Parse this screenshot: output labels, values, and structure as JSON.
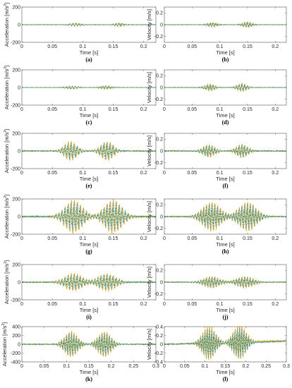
{
  "colors": {
    "solid": "#E8A317",
    "dashed": "#3E9FD6",
    "dashdot": "#2E8B57"
  },
  "chart_data": [
    {
      "id": "a",
      "type": "line",
      "panel_label": "(a)",
      "xlabel": "Time [s]",
      "ylabel": "Acceleration [m/s²]",
      "ylabel_main": "Acceleration [m/s",
      "ylabel_sup": "2",
      "ylabel_end": "]",
      "xlim": [
        0,
        0.22
      ],
      "ylim": [
        -200,
        200
      ],
      "xticks": [
        0,
        0.05,
        0.1,
        0.15,
        0.2
      ],
      "xtick_labels": [
        "0",
        "0.05",
        "0.1",
        "0.15",
        "0.2"
      ],
      "yticks": [
        -200,
        0,
        200
      ],
      "ytick_labels": [
        "-200",
        "0",
        "200"
      ],
      "bursts": [
        {
          "t": 0.088,
          "a": 18,
          "w": 0.012
        },
        {
          "t": 0.16,
          "a": 22,
          "w": 0.01
        }
      ],
      "noise": 6
    },
    {
      "id": "b",
      "type": "line",
      "panel_label": "(b)",
      "xlabel": "Time [s]",
      "ylabel": "Velocity [m/s]",
      "xlim": [
        0,
        0.22
      ],
      "ylim": [
        -0.3,
        0.3
      ],
      "xticks": [
        0,
        0.05,
        0.1,
        0.15,
        0.2
      ],
      "xtick_labels": [
        "0",
        "0.05",
        "0.1",
        "0.15",
        "0.2"
      ],
      "yticks": [
        -0.2,
        0,
        0.2
      ],
      "ytick_labels": [
        "-0.2",
        "0",
        "0.2"
      ],
      "bursts": [
        {
          "t": 0.087,
          "a": 0.04,
          "w": 0.012
        },
        {
          "t": 0.15,
          "a": 0.05,
          "w": 0.012
        }
      ],
      "noise": 0.008
    },
    {
      "id": "c",
      "type": "line",
      "panel_label": "(c)",
      "xlabel": "Time [s]",
      "ylabel": "Acceleration [m/s²]",
      "ylabel_main": "Acceleration [m/s",
      "ylabel_sup": "2",
      "ylabel_end": "]",
      "xlim": [
        0,
        0.22
      ],
      "ylim": [
        -200,
        200
      ],
      "xticks": [
        0,
        0.05,
        0.1,
        0.15,
        0.2
      ],
      "xtick_labels": [
        "0",
        "0.05",
        "0.1",
        "0.15",
        "0.2"
      ],
      "yticks": [
        -200,
        0,
        200
      ],
      "ytick_labels": [
        "-200",
        "0",
        "200"
      ],
      "bursts": [
        {
          "t": 0.082,
          "a": 18,
          "w": 0.014
        },
        {
          "t": 0.138,
          "a": 20,
          "w": 0.014
        }
      ],
      "noise": 4
    },
    {
      "id": "d",
      "type": "line",
      "panel_label": "(d)",
      "xlabel": "Time [s]",
      "ylabel": "Velocity [m/s]",
      "xlim": [
        0,
        0.22
      ],
      "ylim": [
        -0.3,
        0.3
      ],
      "xticks": [
        0,
        0.05,
        0.1,
        0.15,
        0.2
      ],
      "xtick_labels": [
        "0",
        "0.05",
        "0.1",
        "0.15",
        "0.2"
      ],
      "yticks": [
        -0.2,
        0,
        0.2
      ],
      "ytick_labels": [
        "-0.2",
        "0",
        "0.2"
      ],
      "bursts": [
        {
          "t": 0.082,
          "a": 0.06,
          "w": 0.012
        },
        {
          "t": 0.14,
          "a": 0.07,
          "w": 0.012
        }
      ],
      "noise": 0.008
    },
    {
      "id": "e",
      "type": "line",
      "panel_label": "(e)",
      "xlabel": "Time [s]",
      "ylabel": "Acceleration [m/s²]",
      "ylabel_main": "Acceleration [m/s",
      "ylabel_sup": "2",
      "ylabel_end": "]",
      "xlim": [
        0,
        0.22
      ],
      "ylim": [
        -200,
        200
      ],
      "xticks": [
        0,
        0.05,
        0.1,
        0.15,
        0.2
      ],
      "xtick_labels": [
        "0",
        "0.05",
        "0.1",
        "0.15",
        "0.2"
      ],
      "yticks": [
        -200,
        0,
        200
      ],
      "ytick_labels": [
        "-200",
        "0",
        "200"
      ],
      "bursts": [
        {
          "t": 0.08,
          "a": 110,
          "w": 0.014
        },
        {
          "t": 0.14,
          "a": 110,
          "w": 0.014
        }
      ],
      "noise": 14
    },
    {
      "id": "f",
      "type": "line",
      "panel_label": "(f)",
      "xlabel": "Time [s]",
      "ylabel": "Velocity [m/s]",
      "xlim": [
        0,
        0.22
      ],
      "ylim": [
        -0.3,
        0.3
      ],
      "xticks": [
        0,
        0.05,
        0.1,
        0.15,
        0.2
      ],
      "xtick_labels": [
        "0",
        "0.05",
        "0.1",
        "0.15",
        "0.2"
      ],
      "yticks": [
        -0.2,
        0,
        0.2
      ],
      "ytick_labels": [
        "-0.2",
        "0",
        "0.2"
      ],
      "bursts": [
        {
          "t": 0.08,
          "a": 0.11,
          "w": 0.014
        },
        {
          "t": 0.14,
          "a": 0.12,
          "w": 0.014
        }
      ],
      "noise": 0.02
    },
    {
      "id": "g",
      "type": "line",
      "panel_label": "(g)",
      "xlabel": "Time [s]",
      "ylabel": "Acceleration [m/s²]",
      "ylabel_main": "Acceleration [m/s",
      "ylabel_sup": "2",
      "ylabel_end": "]",
      "xlim": [
        0,
        0.22
      ],
      "ylim": [
        -200,
        200
      ],
      "xticks": [
        0,
        0.05,
        0.1,
        0.15,
        0.2
      ],
      "xtick_labels": [
        "0",
        "0.05",
        "0.1",
        "0.15",
        "0.2"
      ],
      "yticks": [
        -200,
        0,
        200
      ],
      "ytick_labels": [
        "-200",
        "0",
        "200"
      ],
      "bursts": [
        {
          "t": 0.085,
          "a": 190,
          "w": 0.02
        },
        {
          "t": 0.15,
          "a": 190,
          "w": 0.02
        }
      ],
      "noise": 18
    },
    {
      "id": "h",
      "type": "line",
      "panel_label": "(h)",
      "xlabel": "Time [s]",
      "ylabel": "Velocity [m/s]",
      "xlim": [
        0,
        0.22
      ],
      "ylim": [
        -0.3,
        0.3
      ],
      "xticks": [
        0,
        0.05,
        0.1,
        0.15,
        0.2
      ],
      "xtick_labels": [
        "0",
        "0.05",
        "0.1",
        "0.15",
        "0.2"
      ],
      "yticks": [
        -0.2,
        0,
        0.2
      ],
      "ytick_labels": [
        "-0.2",
        "0",
        "0.2"
      ],
      "bursts": [
        {
          "t": 0.085,
          "a": 0.25,
          "w": 0.022
        },
        {
          "t": 0.15,
          "a": 0.25,
          "w": 0.022
        }
      ],
      "noise": 0.02
    },
    {
      "id": "i",
      "type": "line",
      "panel_label": "(i)",
      "xlabel": "Time [s]",
      "ylabel": "Acceleration [m/s²]",
      "ylabel_main": "Acceleration [m/s",
      "ylabel_sup": "2",
      "ylabel_end": "]",
      "xlim": [
        0,
        0.22
      ],
      "ylim": [
        -200,
        200
      ],
      "xticks": [
        0,
        0.05,
        0.1,
        0.15,
        0.2
      ],
      "xtick_labels": [
        "0",
        "0.05",
        "0.1",
        "0.15",
        "0.2"
      ],
      "yticks": [
        -200,
        0,
        200
      ],
      "ytick_labels": [
        "-200",
        "0",
        "200"
      ],
      "bursts": [
        {
          "t": 0.085,
          "a": 100,
          "w": 0.02
        },
        {
          "t": 0.14,
          "a": 100,
          "w": 0.02
        }
      ],
      "noise": 14
    },
    {
      "id": "j",
      "type": "line",
      "panel_label": "(j)",
      "xlabel": "Time [s]",
      "ylabel": "Velocity [m/s]",
      "xlim": [
        0,
        0.22
      ],
      "ylim": [
        -0.3,
        0.3
      ],
      "xticks": [
        0,
        0.05,
        0.1,
        0.15,
        0.2
      ],
      "xtick_labels": [
        "0",
        "0.05",
        "0.1",
        "0.15",
        "0.2"
      ],
      "yticks": [
        -0.2,
        0,
        0.2
      ],
      "ytick_labels": [
        "-0.2",
        "0",
        "0.2"
      ],
      "bursts": [
        {
          "t": 0.085,
          "a": 0.1,
          "w": 0.02
        },
        {
          "t": 0.145,
          "a": 0.1,
          "w": 0.02
        }
      ],
      "noise": 0.015
    },
    {
      "id": "k",
      "type": "line",
      "panel_label": "(k)",
      "xlabel": "Time [s]",
      "ylabel": "Acceleration [m/s²]",
      "ylabel_main": "Acceleration [m/s",
      "ylabel_sup": "2",
      "ylabel_end": "]",
      "xlim": [
        0,
        0.3
      ],
      "ylim": [
        -400,
        400
      ],
      "xticks": [
        0,
        0.05,
        0.1,
        0.15,
        0.2,
        0.25,
        0.3
      ],
      "xtick_labels": [
        "0",
        "0.05",
        "0.1",
        "0.15",
        "0.2",
        "0.25",
        "0.3"
      ],
      "yticks": [
        -400,
        -200,
        0,
        200,
        400
      ],
      "ytick_labels": [
        "-400",
        "-200",
        "0",
        "200",
        "400"
      ],
      "bursts": [
        {
          "t": 0.11,
          "a": 300,
          "w": 0.02
        },
        {
          "t": 0.185,
          "a": 300,
          "w": 0.02
        }
      ],
      "noise": 25
    },
    {
      "id": "l",
      "type": "line",
      "panel_label": "(l)",
      "xlabel": "Time [s]",
      "ylabel": "Velocity [m/s]",
      "xlim": [
        0,
        0.3
      ],
      "ylim": [
        -0.4,
        0.4
      ],
      "xticks": [
        0,
        0.05,
        0.1,
        0.15,
        0.2,
        0.25,
        0.3
      ],
      "xtick_labels": [
        "0",
        "0.05",
        "0.1",
        "0.15",
        "0.2",
        "0.25",
        "0.3"
      ],
      "yticks": [
        -0.4,
        -0.2,
        0,
        0.2,
        0.4
      ],
      "ytick_labels": [
        "-0.4",
        "-0.2",
        "0",
        "0.2",
        "0.4"
      ],
      "bursts": [
        {
          "t": 0.11,
          "a": 0.4,
          "w": 0.022
        },
        {
          "t": 0.185,
          "a": 0.4,
          "w": 0.022
        }
      ],
      "noise": 0.03,
      "drift": 0.08
    }
  ]
}
